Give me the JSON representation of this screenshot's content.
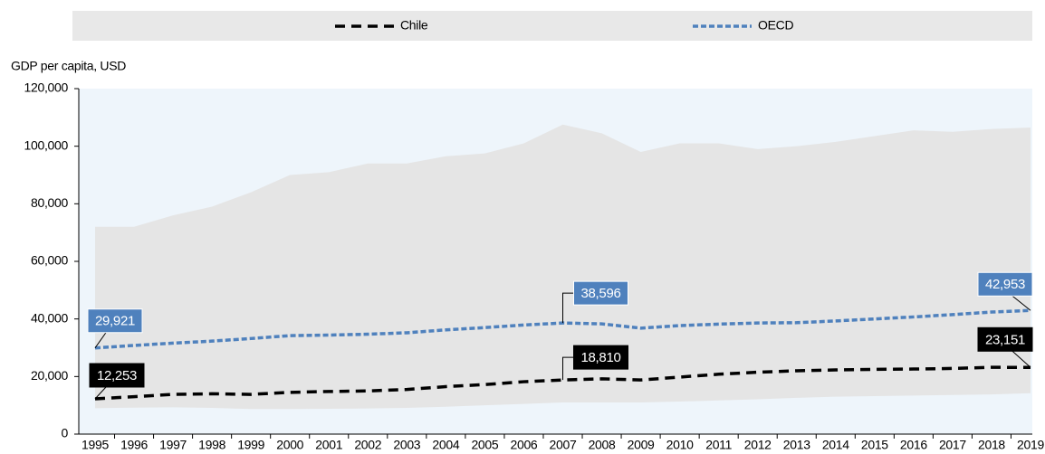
{
  "chart_data": {
    "type": "line",
    "y_axis_label": "GDP per capita, USD",
    "categories": [
      "1995",
      "1996",
      "1997",
      "1998",
      "1999",
      "2000",
      "2001",
      "2002",
      "2003",
      "2004",
      "2005",
      "2006",
      "2007",
      "2008",
      "2009",
      "2010",
      "2011",
      "2012",
      "2013",
      "2014",
      "2015",
      "2016",
      "2017",
      "2018",
      "2019"
    ],
    "series": [
      {
        "name": "Chile",
        "color": "#000000",
        "values": [
          12253,
          13000,
          13800,
          14000,
          13800,
          14500,
          14800,
          15000,
          15500,
          16500,
          17200,
          18200,
          18810,
          19200,
          18800,
          19800,
          20800,
          21500,
          22000,
          22300,
          22500,
          22600,
          22800,
          23200,
          23151
        ],
        "value_labels": [
          "12,253",
          null,
          null,
          null,
          null,
          null,
          null,
          null,
          null,
          null,
          null,
          null,
          "18,810",
          null,
          null,
          null,
          null,
          null,
          null,
          null,
          null,
          null,
          null,
          null,
          "23,151"
        ]
      },
      {
        "name": "OECD",
        "color": "#4f81bd",
        "values": [
          29921,
          30800,
          31600,
          32300,
          33200,
          34200,
          34400,
          34700,
          35200,
          36200,
          37000,
          37900,
          38596,
          38300,
          36800,
          37700,
          38200,
          38600,
          38700,
          39300,
          40000,
          40700,
          41500,
          42400,
          42953
        ],
        "value_labels": [
          "29,921",
          null,
          null,
          null,
          null,
          null,
          null,
          null,
          null,
          null,
          null,
          null,
          "38,596",
          null,
          null,
          null,
          null,
          null,
          null,
          null,
          null,
          null,
          null,
          null,
          "42,953"
        ]
      }
    ],
    "band": {
      "color": "#e5e5e5",
      "upper": [
        72000,
        72000,
        76000,
        79000,
        84000,
        90000,
        91000,
        94000,
        94000,
        96500,
        97500,
        101000,
        107500,
        104500,
        98000,
        101000,
        101000,
        99000,
        100000,
        101500,
        103500,
        105500,
        105000,
        106000,
        106500
      ],
      "lower": [
        9000,
        9200,
        9300,
        9100,
        8700,
        8700,
        8800,
        8900,
        9100,
        9500,
        10000,
        10500,
        11000,
        11000,
        11000,
        11300,
        11700,
        12100,
        12600,
        13000,
        13200,
        13400,
        13600,
        13800,
        14200
      ]
    },
    "ylim": [
      0,
      120000
    ],
    "yticks": [
      0,
      {
        "value": 20000,
        "label": "20,000"
      },
      {
        "value": 40000,
        "label": "40,000"
      },
      {
        "value": 60000,
        "label": "60,000"
      },
      {
        "value": 80000,
        "label": "80,000"
      },
      {
        "value": 100000,
        "label": "100,000"
      },
      {
        "value": 120000,
        "label": "120,000"
      }
    ],
    "legend": "top"
  }
}
